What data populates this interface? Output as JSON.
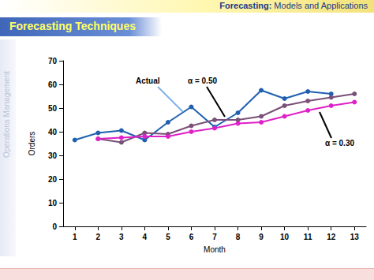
{
  "slide": {
    "header_bold": "Forecasting:",
    "header": "Models and Applications",
    "sidebar": "Operations Management"
  },
  "chart_data": {
    "type": "line",
    "title": "Forecasting Techniques",
    "x_label": "Month",
    "y_label": "Orders",
    "categories": [
      "1",
      "2",
      "3",
      "4",
      "5",
      "6",
      "7",
      "8",
      "9",
      "10",
      "11",
      "12",
      "13"
    ],
    "series": [
      {
        "name": "Actual",
        "color": "#1f5fb0",
        "marker": "circle",
        "values": [
          36.5,
          39.5,
          40.5,
          36.5,
          44,
          50.5,
          42,
          48,
          57.5,
          54,
          57,
          56,
          null
        ]
      },
      {
        "name": "α = 0.50",
        "color": "#7a4f78",
        "marker": "circle",
        "values": [
          null,
          37,
          35.5,
          39.5,
          39,
          42.5,
          45,
          45,
          46.5,
          51,
          53,
          54.5,
          56
        ]
      },
      {
        "name": "α = 0.30",
        "color": "#e020c8",
        "marker": "circle",
        "values": [
          null,
          37,
          37.5,
          38,
          38,
          40,
          41.5,
          43.5,
          44,
          46.5,
          49,
          51,
          52.5
        ]
      }
    ],
    "ylim": [
      0,
      70
    ],
    "yticks": [
      0,
      10,
      20,
      30,
      40,
      50,
      60,
      70
    ],
    "grid": false
  }
}
